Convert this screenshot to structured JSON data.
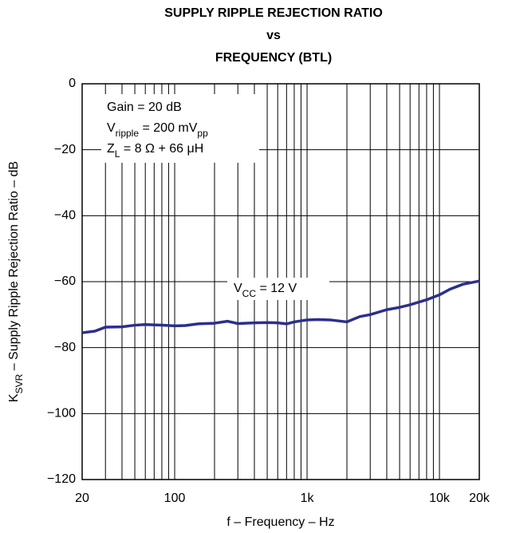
{
  "chart_data": {
    "type": "line",
    "title": [
      "SUPPLY RIPPLE REJECTION RATIO",
      "vs",
      "FREQUENCY (BTL)"
    ],
    "xlabel": "f – Frequency – Hz",
    "ylabel": [
      [
        "K",
        "SVR",
        " – Supply Ripple Rejection Ratio – dB"
      ]
    ],
    "annotations": [
      [
        "Gain = 20 dB"
      ],
      [
        "V",
        "ripple",
        " = 200 mV",
        "pp"
      ],
      [
        "Z",
        "L",
        " = 8 Ω + 66 μH"
      ]
    ],
    "series_label": [
      [
        "V",
        "CC",
        " = 12 V"
      ]
    ],
    "xscale": "log",
    "xlim": [
      20,
      20000
    ],
    "xticks": [
      20,
      100,
      {
        "value": 1000,
        "label": "1k"
      },
      {
        "value": 10000,
        "label": "10k"
      },
      {
        "value": 20000,
        "label": "20k"
      }
    ],
    "xgrid": [
      20,
      30,
      40,
      50,
      60,
      70,
      80,
      90,
      100,
      200,
      300,
      400,
      500,
      600,
      700,
      800,
      900,
      1000,
      2000,
      3000,
      4000,
      5000,
      6000,
      7000,
      8000,
      9000,
      10000,
      20000
    ],
    "ylim": [
      -120,
      0
    ],
    "yticks": [
      0,
      {
        "value": -20,
        "label": "−20"
      },
      {
        "value": -40,
        "label": "−40"
      },
      {
        "value": -60,
        "label": "−60"
      },
      {
        "value": -80,
        "label": "−80"
      },
      {
        "value": -100,
        "label": "−100"
      },
      {
        "value": -120,
        "label": "−120"
      }
    ],
    "grid": true,
    "x": [
      20,
      25,
      30,
      40,
      50,
      60,
      80,
      100,
      120,
      150,
      200,
      250,
      300,
      400,
      500,
      600,
      700,
      800,
      1000,
      1200,
      1500,
      2000,
      2500,
      3000,
      4000,
      5000,
      6000,
      8000,
      10000,
      12000,
      15000,
      20000
    ],
    "series": [
      {
        "name": "VCC = 12 V",
        "color": "#2b2f8c",
        "values": [
          -75.5,
          -75,
          -73.8,
          -73.7,
          -73.2,
          -73,
          -73.2,
          -73.4,
          -73.3,
          -72.8,
          -72.6,
          -72,
          -72.7,
          -72.5,
          -72.4,
          -72.5,
          -72.8,
          -72.2,
          -71.6,
          -71.5,
          -71.6,
          -72.2,
          -70.6,
          -70,
          -68.5,
          -67.8,
          -67,
          -65.5,
          -64,
          -62.3,
          -60.8,
          -59.8
        ]
      }
    ]
  }
}
